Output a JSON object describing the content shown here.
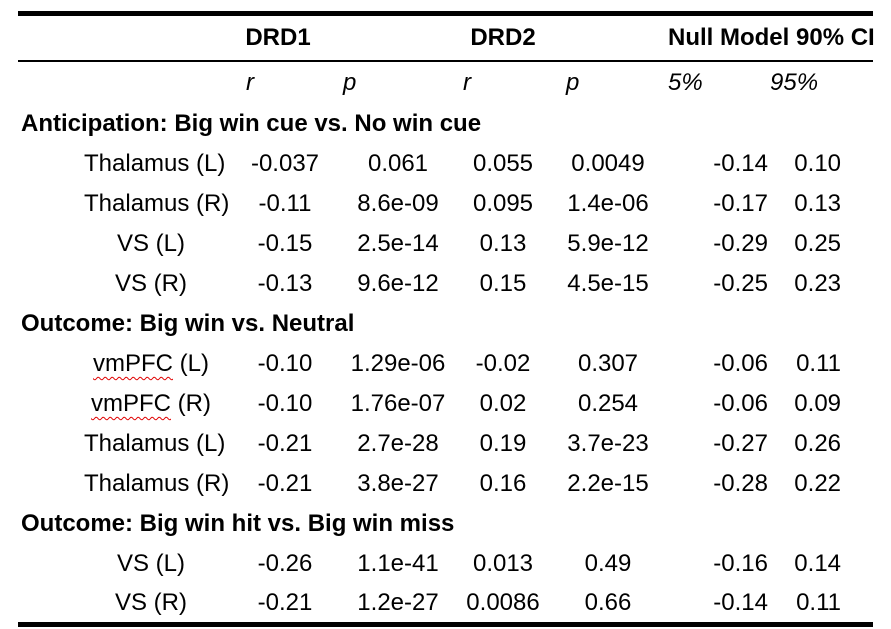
{
  "colors": {
    "background": "#ffffff",
    "text": "#000000",
    "border": "#000000",
    "spellcheck_squiggle": "#e00000"
  },
  "table": {
    "column_groups": {
      "drd1": "DRD1",
      "drd2": "DRD2",
      "null_model": "Null Model 90% CI"
    },
    "subheaders": {
      "drd1_r": "r",
      "drd1_p": "p",
      "drd2_r": "r",
      "drd2_p": "p",
      "ci_low": "5%",
      "ci_high": "95%"
    },
    "sections": [
      {
        "title": "Anticipation: Big win cue vs. No win cue",
        "rows": [
          {
            "label": "Thalamus (L)",
            "drd1_r": "-0.037",
            "drd1_p": "0.061",
            "drd2_r": "0.055",
            "drd2_p": "0.0049",
            "ci_5": "-0.14",
            "ci_95": "0.10"
          },
          {
            "label": "Thalamus (R)",
            "drd1_r": "-0.11",
            "drd1_p": "8.6e-09",
            "drd2_r": "0.095",
            "drd2_p": "1.4e-06",
            "ci_5": "-0.17",
            "ci_95": "0.13"
          },
          {
            "label": "VS (L)",
            "drd1_r": "-0.15",
            "drd1_p": "2.5e-14",
            "drd2_r": "0.13",
            "drd2_p": "5.9e-12",
            "ci_5": "-0.29",
            "ci_95": "0.25"
          },
          {
            "label": "VS (R)",
            "drd1_r": "-0.13",
            "drd1_p": "9.6e-12",
            "drd2_r": "0.15",
            "drd2_p": "4.5e-15",
            "ci_5": "-0.25",
            "ci_95": "0.23"
          }
        ]
      },
      {
        "title": "Outcome: Big win vs. Neutral",
        "rows": [
          {
            "label": "vmPFC (L)",
            "misspelled_part": "vmPFC",
            "drd1_r": "-0.10",
            "drd1_p": "1.29e-06",
            "drd2_r": "-0.02",
            "drd2_p": "0.307",
            "ci_5": "-0.06",
            "ci_95": "0.11"
          },
          {
            "label": "vmPFC (R)",
            "misspelled_part": "vmPFC",
            "drd1_r": "-0.10",
            "drd1_p": "1.76e-07",
            "drd2_r": "0.02",
            "drd2_p": "0.254",
            "ci_5": "-0.06",
            "ci_95": "0.09"
          },
          {
            "label": "Thalamus (L)",
            "drd1_r": "-0.21",
            "drd1_p": "2.7e-28",
            "drd2_r": "0.19",
            "drd2_p": "3.7e-23",
            "ci_5": "-0.27",
            "ci_95": "0.26"
          },
          {
            "label": "Thalamus (R)",
            "drd1_r": "-0.21",
            "drd1_p": "3.8e-27",
            "drd2_r": "0.16",
            "drd2_p": "2.2e-15",
            "ci_5": "-0.28",
            "ci_95": "0.22"
          }
        ]
      },
      {
        "title": "Outcome: Big win hit vs. Big win miss",
        "rows": [
          {
            "label": "VS (L)",
            "drd1_r": "-0.26",
            "drd1_p": "1.1e-41",
            "drd2_r": "0.013",
            "drd2_p": "0.49",
            "ci_5": "-0.16",
            "ci_95": "0.14"
          },
          {
            "label": "VS (R)",
            "drd1_r": "-0.21",
            "drd1_p": "1.2e-27",
            "drd2_r": "0.0086",
            "drd2_p": "0.66",
            "ci_5": "-0.14",
            "ci_95": "0.11"
          }
        ]
      }
    ]
  }
}
